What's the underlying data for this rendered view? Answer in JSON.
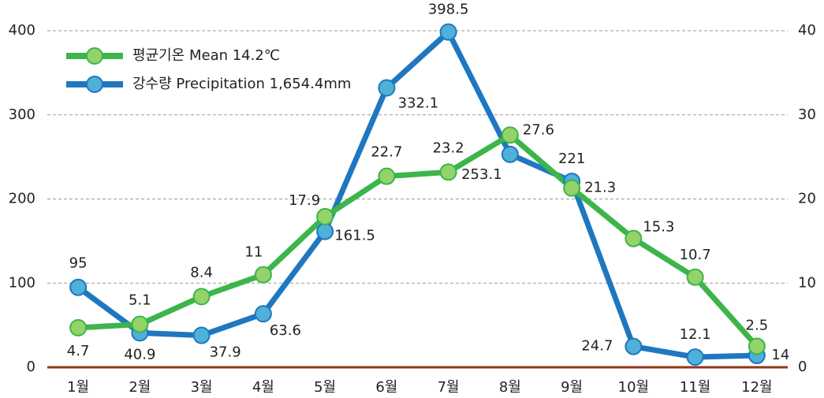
{
  "chart_data": {
    "type": "line",
    "categories": [
      "1월",
      "2월",
      "3월",
      "4월",
      "5월",
      "6월",
      "7월",
      "8월",
      "9월",
      "10월",
      "11월",
      "12월"
    ],
    "series": [
      {
        "name": "평균기온 Mean 14.2℃",
        "color": "#3cb54a",
        "axis": "y2",
        "marker_color": "#93d36a",
        "values": [
          4.7,
          5.1,
          8.4,
          11,
          17.9,
          22.7,
          23.2,
          27.6,
          21.3,
          15.3,
          10.7,
          2.5
        ]
      },
      {
        "name": "강수량 Precipitation 1,654.4mm",
        "color": "#1f77c0",
        "marker_color": "#4fb0d8",
        "values": [
          95,
          40.9,
          37.9,
          63.6,
          161.5,
          332.1,
          398.5,
          253.1,
          221,
          24.7,
          12.1,
          14
        ]
      }
    ],
    "ylim": [
      0,
      400
    ],
    "yticks": [
      0,
      100,
      200,
      300,
      400
    ],
    "y2lim": [
      0,
      40
    ],
    "y2ticks": [
      0,
      10,
      20,
      30,
      40
    ],
    "grid": true,
    "legend": "top-left"
  }
}
